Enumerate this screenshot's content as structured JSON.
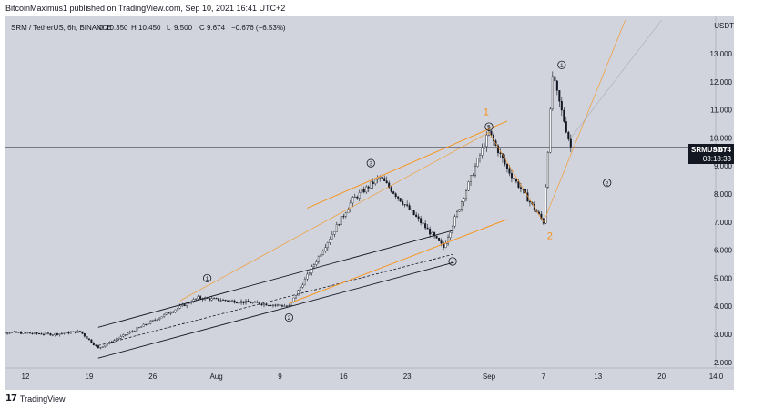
{
  "header": {
    "publisher_line": "BitcoinMaximus1 published on TradingView.com, Sep 10, 2021 16:41 UTC+2"
  },
  "legend": {
    "symbol_line": "SRM / TetherUS, 6h, BINANCE",
    "open_label": "O",
    "open": "10.350",
    "high_label": "H",
    "high": "10.450",
    "low_label": "L",
    "low": "9.500",
    "close_label": "C",
    "close": "9.674",
    "change": "−0.676 (−6.53%)"
  },
  "footer": {
    "brand_mark": "17",
    "brand_text": "TradingView"
  },
  "colors": {
    "background": "#d1d4dc",
    "candle": "#131722",
    "trendline": "#131722",
    "orange": "#f7931a",
    "label_bg": "#131722",
    "label_fg": "#ffffff"
  },
  "chart_data": {
    "type": "candlestick",
    "symbol": "SRMUSDT",
    "y_axis": {
      "unit": "USDT",
      "ticks": [
        2.0,
        3.0,
        4.0,
        5.0,
        6.0,
        7.0,
        8.0,
        9.0,
        10.0,
        11.0,
        12.0,
        13.0
      ],
      "tick_labels": [
        "2.000",
        "3.000",
        "4.000",
        "5.000",
        "6.000",
        "7.000",
        "8.000",
        "9.000",
        "10.000",
        "11.000",
        "12.000",
        "13.000"
      ],
      "range": [
        1.8,
        14.2
      ]
    },
    "x_axis": {
      "ticks": [
        "12",
        "19",
        "26",
        "Aug",
        "9",
        "16",
        "23",
        "Sep",
        "7",
        "13",
        "20",
        "14:0"
      ],
      "tick_dates": [
        "2021-07-12",
        "2021-07-19",
        "2021-07-26",
        "2021-08-02",
        "2021-08-09",
        "2021-08-16",
        "2021-08-23",
        "2021-09-01",
        "2021-09-07",
        "2021-09-13",
        "2021-09-20",
        "2021-09-26"
      ]
    },
    "last_price": {
      "symbol_label": "SRMUSDT",
      "value": "9.674",
      "countdown": "03:18:33"
    },
    "key_points": [
      {
        "date": "2021-07-20",
        "low": 2.5
      },
      {
        "date": "2021-07-31",
        "high": 4.3
      },
      {
        "date": "2021-08-10",
        "low": 4.0
      },
      {
        "date": "2021-08-17",
        "high": 7.8
      },
      {
        "date": "2021-08-20",
        "high": 8.6
      },
      {
        "date": "2021-08-27",
        "low": 6.1
      },
      {
        "date": "2021-09-01",
        "high": 10.2
      },
      {
        "date": "2021-09-03",
        "low": 8.9
      },
      {
        "date": "2021-09-07",
        "low": 7.0
      },
      {
        "date": "2021-09-08",
        "high": 12.2
      },
      {
        "date": "2021-09-10",
        "close": 9.674
      }
    ],
    "wave_labels": [
      "1",
      "2",
      "3",
      "4",
      "5",
      "1",
      "2"
    ],
    "orange_labels": [
      "1",
      "2"
    ],
    "horizontal_levels": [
      10.0,
      9.674
    ]
  }
}
